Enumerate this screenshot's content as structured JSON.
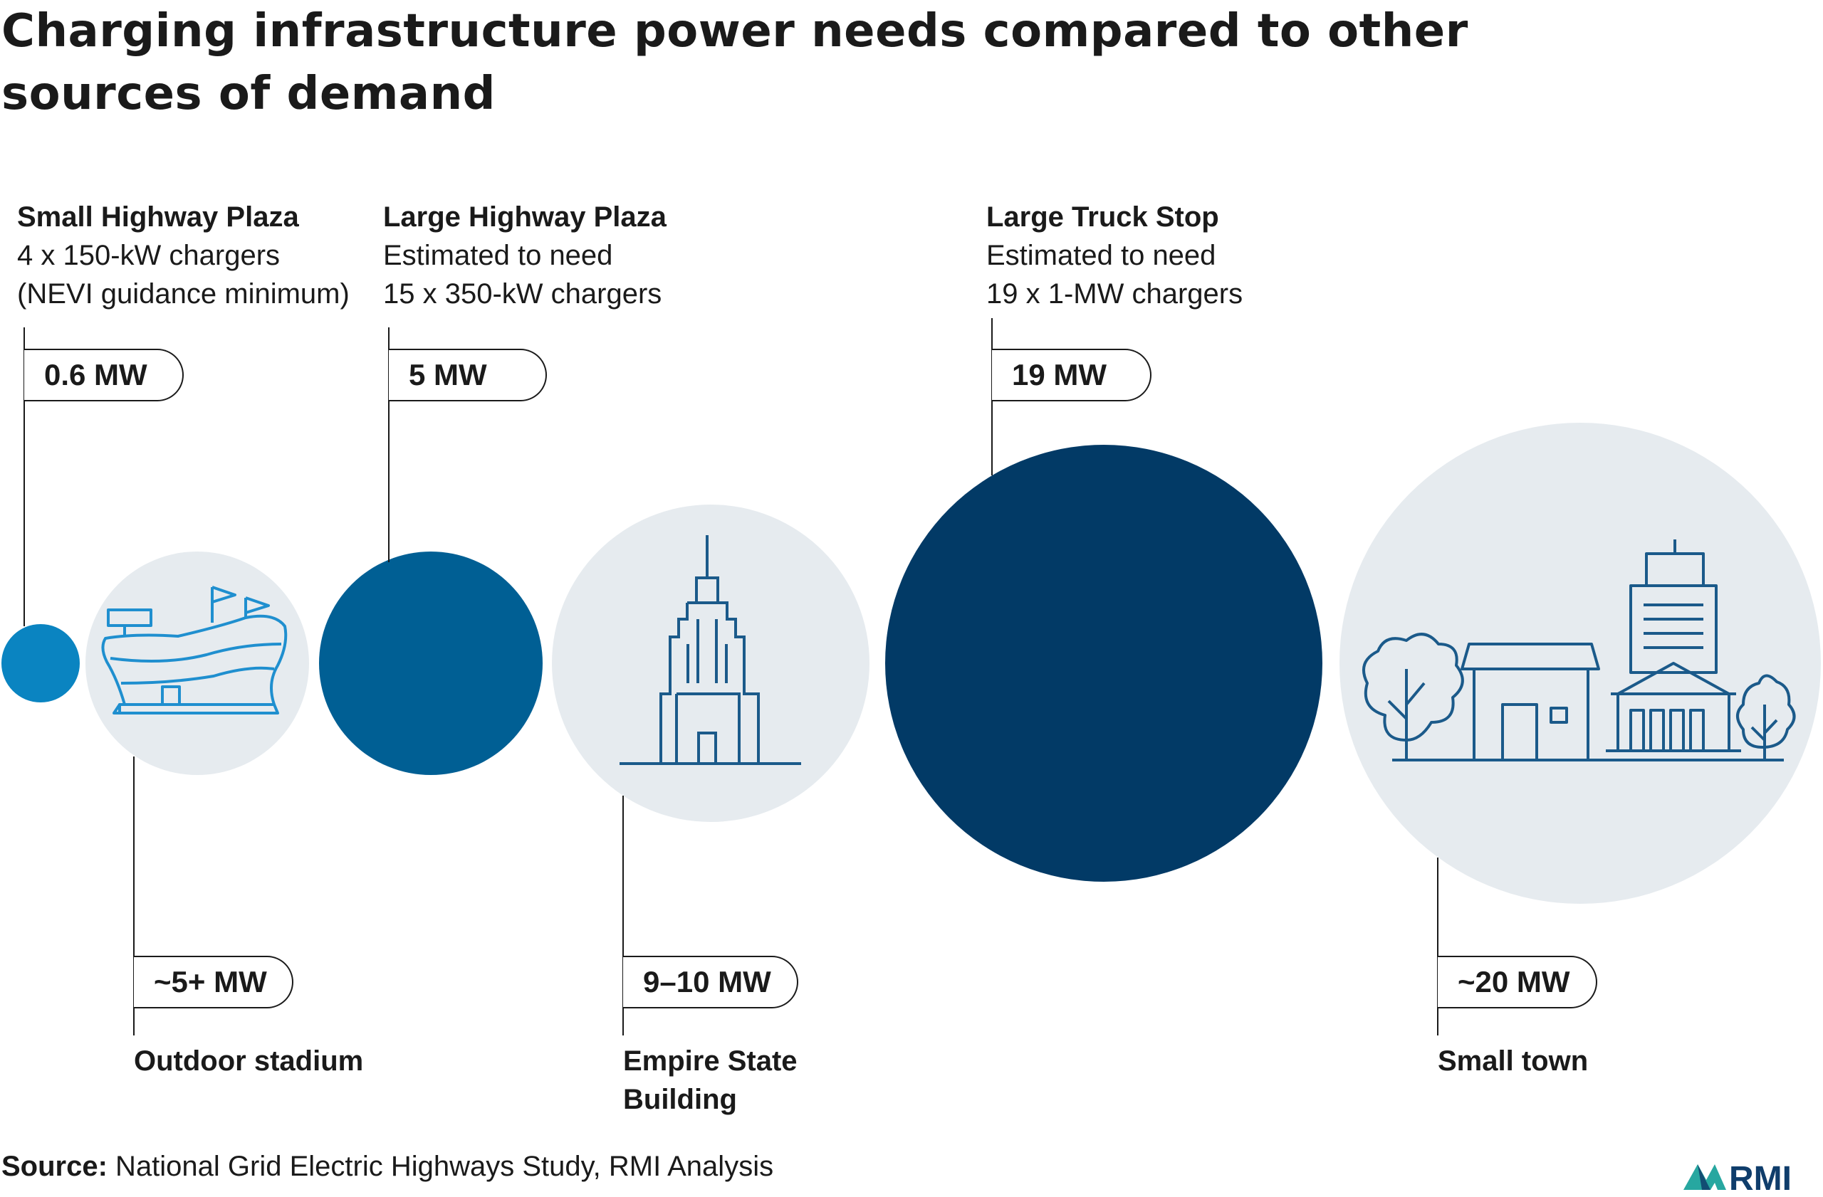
{
  "title": "Charging infrastructure power needs compared to other sources of demand",
  "charging": [
    {
      "name": "Small Highway Plaza",
      "desc": "4 x 150-kW chargers\n(NEVI guidance minimum)",
      "power": "0.6 MW",
      "value_mw": 0.6
    },
    {
      "name": "Large Highway Plaza",
      "desc": "Estimated to need\n15 x 350-kW chargers",
      "power": "5 MW",
      "value_mw": 5
    },
    {
      "name": "Large Truck Stop",
      "desc": "Estimated to need\n19 x 1-MW chargers",
      "power": "19 MW",
      "value_mw": 19
    }
  ],
  "comparisons": [
    {
      "name": "Outdoor stadium",
      "power": "~5+ MW",
      "icon": "stadium-icon"
    },
    {
      "name": "Empire State\nBuilding",
      "power": "9–10 MW",
      "icon": "skyscraper-icon"
    },
    {
      "name": "Small town",
      "power": "~20 MW",
      "icon": "town-icon"
    }
  ],
  "source": {
    "lead": "Source:",
    "text": " National Grid Electric Highways Study, RMI Analysis"
  },
  "logo": {
    "text": "RMI"
  },
  "colors": {
    "small_plaza": "#0a84c1",
    "large_plaza": "#005f94",
    "truck_stop": "#023a66",
    "comparison_fill": "#e6ebef",
    "icon_stroke": "#1f8fcf",
    "icon_stroke_dark": "#1b5a8a",
    "logo_teal": "#27a7a0",
    "logo_navy": "#0f3d6b"
  }
}
